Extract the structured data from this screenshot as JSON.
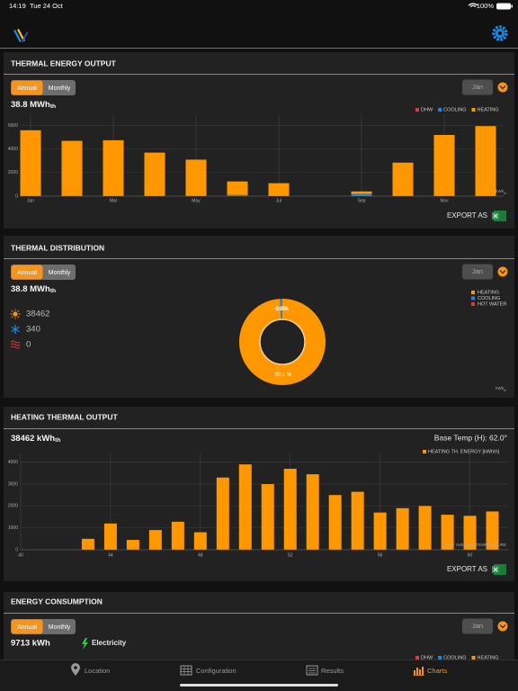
{
  "status_bar": {
    "time": "14:19",
    "date": "Tue 24 Oct",
    "battery": "100%"
  },
  "thermal_energy_output": {
    "title": "THERMAL ENERGY OUTPUT",
    "toggle": [
      "Annual",
      "Monthly"
    ],
    "period": "Jan",
    "total": {
      "value": "38.8 MWh",
      "sub": "th"
    },
    "export": "EXPORT AS",
    "chart_data": {
      "type": "bar",
      "stacked": true,
      "categories": [
        "Jan",
        null,
        "Mar",
        null,
        "May",
        null,
        "Jul",
        null,
        "Sep",
        null,
        "Nov",
        null
      ],
      "series": [
        {
          "name": "DHW",
          "color": "#e53935",
          "values": [
            0,
            0,
            0,
            0,
            0,
            0,
            0,
            0,
            0,
            0,
            0,
            0
          ]
        },
        {
          "name": "COOLING",
          "color": "#1e88e5",
          "values": [
            0,
            0,
            0,
            0,
            0,
            100,
            0,
            0,
            200,
            0,
            0,
            0
          ]
        },
        {
          "name": "HEATING",
          "color": "#ff9800",
          "values": [
            5600,
            4700,
            4750,
            3700,
            3100,
            1150,
            1100,
            0,
            200,
            2850,
            5200,
            5950
          ]
        }
      ],
      "ylim": [
        0,
        6500
      ],
      "yticks": [
        0,
        2000,
        4000,
        6000
      ],
      "unit": {
        "value": "kWh",
        "sub": "th"
      },
      "grid": true
    }
  },
  "thermal_distribution": {
    "title": "THERMAL DISTRIBUTION",
    "toggle": [
      "Annual",
      "Monthly"
    ],
    "period": "Jan",
    "total": {
      "value": "38.8 MWh",
      "sub": "th"
    },
    "stats": [
      "38462",
      "340",
      "0"
    ],
    "chart_data": {
      "type": "donut",
      "categories": [
        "HEATING",
        "COOLING",
        "HOT WATER"
      ],
      "values": [
        99.1,
        0.9,
        0
      ],
      "value_labels": [
        "99.1 %",
        "0.9%",
        "0.0%"
      ],
      "colors": [
        "#ff9800",
        "#1e88e5",
        "#e53935"
      ],
      "unit": {
        "value": "kWh",
        "sub": "th"
      }
    }
  },
  "heating_thermal_output": {
    "title": "HEATING THERMAL OUTPUT",
    "total": {
      "value": "38462 kWh",
      "sub": "th"
    },
    "base_temp": "Base Temp (H): 62.0°",
    "export": "EXPORT AS",
    "chart_data": {
      "type": "bar",
      "x": [
        43,
        44,
        45,
        46,
        47,
        48,
        49,
        50,
        51,
        52,
        53,
        54,
        55,
        56,
        57,
        58,
        59,
        60,
        61
      ],
      "series": [
        {
          "name": "HEATING TH. ENERGY [kWhth]",
          "color": "#ff9800",
          "values": [
            500,
            1200,
            450,
            900,
            1280,
            800,
            3300,
            3900,
            3000,
            3700,
            3450,
            2500,
            2650,
            1700,
            1900,
            2000,
            1600,
            1550,
            1750
          ]
        }
      ],
      "xlim": [
        40,
        61.7
      ],
      "xticks": [
        40,
        44,
        48,
        52,
        56,
        60
      ],
      "ylim": [
        0,
        4400
      ],
      "yticks": [
        0,
        1000,
        2000,
        3000,
        4000
      ],
      "x_label": "DAILY AVERAGE TEMPERATURE",
      "grid": true
    }
  },
  "energy_consumption": {
    "title": "ENERGY CONSUMPTION",
    "toggle": [
      "Annual",
      "Monthly"
    ],
    "period": "Jan",
    "total": "9713 kWh",
    "source": "Electricity",
    "legend": [
      {
        "name": "DHW",
        "color": "#e53935"
      },
      {
        "name": "COOLING",
        "color": "#1e88e5"
      },
      {
        "name": "HEATING",
        "color": "#ff9800"
      }
    ]
  },
  "tabs": [
    "Location",
    "Configuration",
    "Results",
    "Charts"
  ]
}
